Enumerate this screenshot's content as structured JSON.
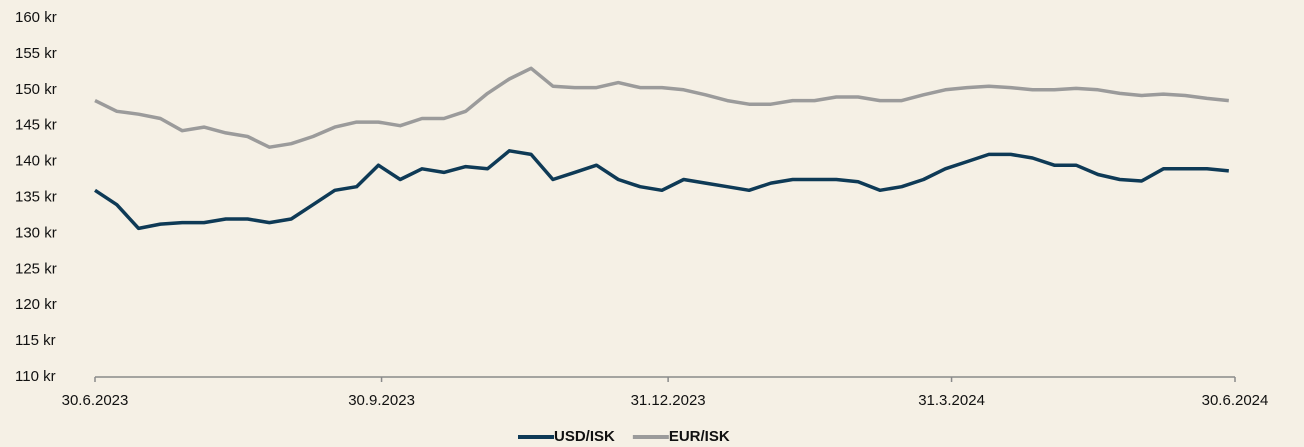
{
  "chart_data": {
    "type": "line",
    "x": [
      "2023-06-30",
      "2023-07-07",
      "2023-07-14",
      "2023-07-21",
      "2023-07-28",
      "2023-08-04",
      "2023-08-11",
      "2023-08-18",
      "2023-08-25",
      "2023-09-01",
      "2023-09-08",
      "2023-09-15",
      "2023-09-22",
      "2023-09-29",
      "2023-10-06",
      "2023-10-13",
      "2023-10-20",
      "2023-10-27",
      "2023-11-03",
      "2023-11-10",
      "2023-11-17",
      "2023-11-24",
      "2023-12-01",
      "2023-12-08",
      "2023-12-15",
      "2023-12-22",
      "2023-12-29",
      "2024-01-05",
      "2024-01-12",
      "2024-01-19",
      "2024-01-26",
      "2024-02-02",
      "2024-02-09",
      "2024-02-16",
      "2024-02-23",
      "2024-03-01",
      "2024-03-08",
      "2024-03-15",
      "2024-03-22",
      "2024-03-29",
      "2024-04-05",
      "2024-04-12",
      "2024-04-19",
      "2024-04-26",
      "2024-05-03",
      "2024-05-10",
      "2024-05-17",
      "2024-05-24",
      "2024-05-31",
      "2024-06-07",
      "2024-06-14",
      "2024-06-21",
      "2024-06-28"
    ],
    "series": [
      {
        "name": "USD/ISK",
        "color": "#0e3a56",
        "values": [
          136,
          134,
          130.7,
          131.3,
          131.5,
          131.5,
          132,
          132,
          131.5,
          132,
          134,
          136,
          136.5,
          139.5,
          137.5,
          139,
          138.5,
          139.3,
          139,
          141.5,
          141,
          137.5,
          138.5,
          139.5,
          137.5,
          136.5,
          136,
          137.5,
          137,
          136.5,
          136,
          137,
          137.5,
          137.5,
          137.5,
          137.2,
          136,
          136.5,
          137.5,
          139,
          140,
          141,
          141,
          140.5,
          139.5,
          139.5,
          138.2,
          137.5,
          137.3,
          139,
          139,
          139,
          138.7
        ]
      },
      {
        "name": "EUR/ISK",
        "color": "#9b9b9b",
        "values": [
          148.5,
          147,
          146.6,
          146,
          144.3,
          144.8,
          144,
          143.5,
          142,
          142.5,
          143.5,
          144.8,
          145.5,
          145.5,
          145,
          146,
          146,
          147,
          149.5,
          151.5,
          153,
          150.5,
          150.3,
          150.3,
          151,
          150.3,
          150.3,
          150,
          149.3,
          148.5,
          148,
          148,
          148.5,
          148.5,
          149,
          149,
          148.5,
          148.5,
          149.3,
          150,
          150.3,
          150.5,
          150.3,
          150,
          150,
          150.2,
          150,
          149.5,
          149.2,
          149.4,
          149.2,
          148.8,
          148.5
        ]
      }
    ],
    "xlim": [
      "2023-06-30",
      "2024-06-30"
    ],
    "xticks": [
      {
        "value": "2023-06-30",
        "label": "30.6.2023"
      },
      {
        "value": "2023-09-30",
        "label": "30.9.2023"
      },
      {
        "value": "2023-12-31",
        "label": "31.12.2023"
      },
      {
        "value": "2024-03-31",
        "label": "31.3.2024"
      },
      {
        "value": "2024-06-30",
        "label": "30.6.2024"
      }
    ],
    "ylim": [
      110,
      160
    ],
    "yticks": [
      {
        "value": 110,
        "label": "110 kr"
      },
      {
        "value": 115,
        "label": "115 kr"
      },
      {
        "value": 120,
        "label": "120 kr"
      },
      {
        "value": 125,
        "label": "125 kr"
      },
      {
        "value": 130,
        "label": "130 kr"
      },
      {
        "value": 135,
        "label": "135 kr"
      },
      {
        "value": 140,
        "label": "140 kr"
      },
      {
        "value": 145,
        "label": "145 kr"
      },
      {
        "value": 150,
        "label": "150 kr"
      },
      {
        "value": 155,
        "label": "155 kr"
      },
      {
        "value": 160,
        "label": "160 kr"
      }
    ],
    "legend": "bottom"
  }
}
